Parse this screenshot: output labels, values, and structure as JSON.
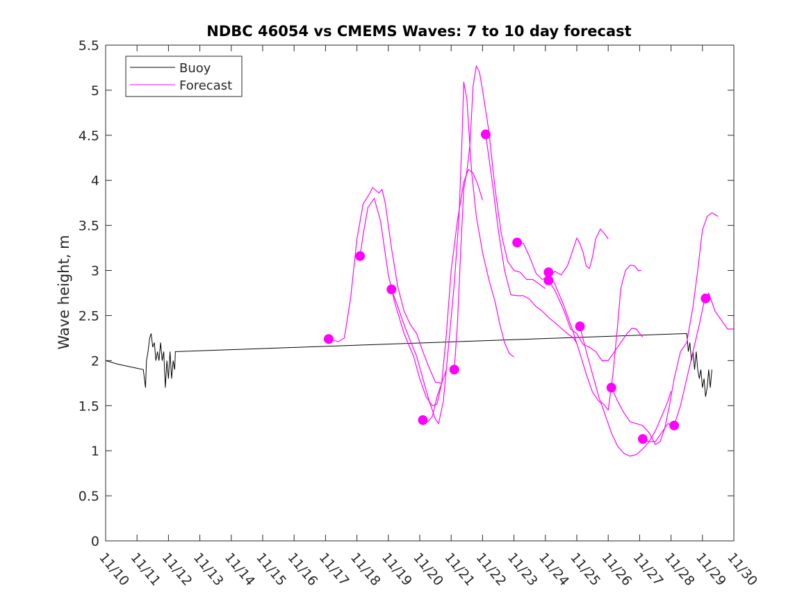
{
  "chart_data": {
    "type": "line",
    "title": "NDBC 46054 vs CMEMS Waves: 7 to 10 day forecast",
    "xlabel": "",
    "ylabel": "Wave height, m",
    "xlim": [
      0,
      20
    ],
    "ylim": [
      0,
      5.5
    ],
    "x_tick_values": [
      0,
      1,
      2,
      3,
      4,
      5,
      6,
      7,
      8,
      9,
      10,
      11,
      12,
      13,
      14,
      15,
      16,
      17,
      18,
      19,
      20
    ],
    "x_tick_labels": [
      "11/10",
      "11/11",
      "11/12",
      "11/13",
      "11/14",
      "11/15",
      "11/16",
      "11/17",
      "11/18",
      "11/19",
      "11/20",
      "11/21",
      "11/22",
      "11/23",
      "11/24",
      "11/25",
      "11/26",
      "11/27",
      "11/28",
      "11/29",
      "11/30"
    ],
    "y_tick_values": [
      0,
      0.5,
      1,
      1.5,
      2,
      2.5,
      3,
      3.5,
      4,
      4.5,
      5,
      5.5
    ],
    "y_tick_labels": [
      "0",
      "0.5",
      "1",
      "1.5",
      "2",
      "2.5",
      "3",
      "3.5",
      "4",
      "4.5",
      "5",
      "5.5"
    ],
    "grid": false,
    "legend": {
      "position": "top-left",
      "entries": [
        "Buoy",
        "Forecast"
      ]
    },
    "colors": {
      "buoy": "#000000",
      "forecast": "#ff00ff"
    },
    "series": [
      {
        "name": "Buoy",
        "color": "#000000",
        "points": [
          [
            0.0,
            2.0
          ],
          [
            0.4,
            1.96
          ],
          [
            0.8,
            1.93
          ],
          [
            1.2,
            1.9
          ],
          [
            1.27,
            1.7
          ],
          [
            1.3,
            2.0
          ],
          [
            1.35,
            2.1
          ],
          [
            1.4,
            2.25
          ],
          [
            1.45,
            2.3
          ],
          [
            1.5,
            2.15
          ],
          [
            1.55,
            2.2
          ],
          [
            1.6,
            2.0
          ],
          [
            1.65,
            2.1
          ],
          [
            1.7,
            2.0
          ],
          [
            1.75,
            2.2
          ],
          [
            1.8,
            2.0
          ],
          [
            1.85,
            2.1
          ],
          [
            1.9,
            1.7
          ],
          [
            1.95,
            2.0
          ],
          [
            2.0,
            1.8
          ],
          [
            2.05,
            2.1
          ],
          [
            2.1,
            1.8
          ],
          [
            2.15,
            2.0
          ],
          [
            2.2,
            1.9
          ],
          [
            2.22,
            2.1
          ],
          [
            18.5,
            2.3
          ],
          [
            18.55,
            2.1
          ],
          [
            18.6,
            2.2
          ],
          [
            18.65,
            2.0
          ],
          [
            18.7,
            2.1
          ],
          [
            18.75,
            1.9
          ],
          [
            18.8,
            2.1
          ],
          [
            18.85,
            1.9
          ],
          [
            18.9,
            1.8
          ],
          [
            18.95,
            1.9
          ],
          [
            19.0,
            1.7
          ],
          [
            19.05,
            1.8
          ],
          [
            19.1,
            1.6
          ],
          [
            19.15,
            1.7
          ],
          [
            19.2,
            1.9
          ],
          [
            19.25,
            1.7
          ],
          [
            19.3,
            1.9
          ]
        ]
      },
      {
        "name": "Forecast",
        "color": "#ff00ff",
        "forecast_runs": [
          [
            [
              7.1,
              2.24
            ],
            [
              7.4,
              2.21
            ],
            [
              7.6,
              2.25
            ],
            [
              7.8,
              2.7
            ],
            [
              8.0,
              3.35
            ],
            [
              8.2,
              3.74
            ],
            [
              8.4,
              3.85
            ],
            [
              8.5,
              3.92
            ],
            [
              8.7,
              3.86
            ],
            [
              8.8,
              3.9
            ],
            [
              8.9,
              3.75
            ],
            [
              9.1,
              3.25
            ],
            [
              9.3,
              2.82
            ],
            [
              9.5,
              2.55
            ],
            [
              9.7,
              2.4
            ],
            [
              9.9,
              2.3
            ],
            [
              10.1,
              2.1
            ],
            [
              10.3,
              1.92
            ],
            [
              10.5,
              1.76
            ],
            [
              10.7,
              1.75
            ]
          ],
          [
            [
              8.1,
              3.16
            ],
            [
              8.2,
              3.4
            ],
            [
              8.35,
              3.7
            ],
            [
              8.55,
              3.8
            ],
            [
              8.75,
              3.55
            ],
            [
              9.0,
              2.95
            ],
            [
              9.2,
              2.65
            ],
            [
              9.5,
              2.3
            ],
            [
              9.8,
              2.05
            ],
            [
              10.0,
              1.8
            ],
            [
              10.2,
              1.6
            ],
            [
              10.4,
              1.5
            ],
            [
              10.55,
              1.52
            ],
            [
              10.7,
              1.75
            ],
            [
              10.85,
              2.3
            ],
            [
              11.0,
              3.0
            ],
            [
              11.2,
              3.55
            ],
            [
              11.4,
              3.98
            ],
            [
              11.55,
              4.12
            ],
            [
              11.7,
              4.08
            ],
            [
              11.85,
              3.95
            ],
            [
              12.0,
              3.78
            ]
          ],
          [
            [
              9.1,
              2.79
            ],
            [
              9.3,
              2.6
            ],
            [
              9.5,
              2.4
            ],
            [
              9.7,
              2.22
            ],
            [
              9.9,
              2.05
            ],
            [
              10.1,
              1.8
            ],
            [
              10.3,
              1.55
            ],
            [
              10.5,
              1.35
            ],
            [
              10.6,
              1.3
            ],
            [
              10.75,
              1.55
            ],
            [
              10.9,
              2.1
            ],
            [
              11.1,
              2.85
            ],
            [
              11.25,
              3.6
            ],
            [
              11.35,
              4.5
            ],
            [
              11.4,
              5.09
            ],
            [
              11.5,
              4.9
            ],
            [
              11.65,
              4.1
            ],
            [
              11.8,
              3.6
            ],
            [
              12.0,
              3.2
            ],
            [
              12.2,
              2.9
            ],
            [
              12.4,
              2.65
            ],
            [
              12.55,
              2.4
            ],
            [
              12.7,
              2.2
            ],
            [
              12.85,
              2.08
            ],
            [
              13.0,
              2.04
            ]
          ],
          [
            [
              10.1,
              1.34
            ],
            [
              10.25,
              1.32
            ],
            [
              10.4,
              1.38
            ],
            [
              10.55,
              1.6
            ],
            [
              10.7,
              1.75
            ],
            [
              10.85,
              1.9
            ]
          ],
          [
            [
              11.1,
              1.9
            ],
            [
              11.2,
              2.4
            ],
            [
              11.3,
              3.2
            ],
            [
              11.4,
              3.9
            ],
            [
              11.5,
              4.1
            ],
            [
              11.6,
              4.4
            ],
            [
              11.7,
              5.05
            ],
            [
              11.8,
              5.27
            ],
            [
              11.9,
              5.2
            ],
            [
              12.0,
              5.0
            ],
            [
              12.2,
              4.55
            ],
            [
              12.4,
              3.9
            ],
            [
              12.6,
              3.4
            ],
            [
              12.8,
              3.1
            ],
            [
              13.0,
              3.0
            ],
            [
              13.2,
              2.98
            ],
            [
              13.4,
              2.9
            ],
            [
              13.6,
              2.9
            ],
            [
              13.8,
              2.85
            ],
            [
              14.0,
              2.8
            ]
          ],
          [
            [
              12.1,
              4.51
            ],
            [
              12.3,
              4.0
            ],
            [
              12.5,
              3.45
            ],
            [
              12.7,
              3.0
            ],
            [
              12.9,
              2.73
            ],
            [
              13.1,
              2.72
            ],
            [
              13.3,
              2.72
            ],
            [
              13.5,
              2.68
            ],
            [
              13.7,
              2.6
            ],
            [
              13.9,
              2.55
            ],
            [
              14.1,
              2.48
            ],
            [
              14.3,
              2.42
            ],
            [
              14.5,
              2.36
            ],
            [
              14.7,
              2.3
            ],
            [
              14.9,
              2.25
            ],
            [
              15.0,
              2.19
            ]
          ],
          [
            [
              13.1,
              3.31
            ],
            [
              13.3,
              3.3
            ],
            [
              13.5,
              3.15
            ],
            [
              13.7,
              2.97
            ],
            [
              13.9,
              2.9
            ],
            [
              14.1,
              2.93
            ],
            [
              14.3,
              2.99
            ],
            [
              14.5,
              2.95
            ],
            [
              14.7,
              3.05
            ],
            [
              14.85,
              3.2
            ],
            [
              15.0,
              3.36
            ],
            [
              15.1,
              3.3
            ],
            [
              15.2,
              3.2
            ],
            [
              15.3,
              3.05
            ],
            [
              15.4,
              3.02
            ],
            [
              15.5,
              3.15
            ],
            [
              15.6,
              3.35
            ],
            [
              15.75,
              3.46
            ],
            [
              15.9,
              3.4
            ],
            [
              16.0,
              3.35
            ]
          ],
          [
            [
              14.1,
              2.98
            ],
            [
              14.3,
              2.85
            ],
            [
              14.6,
              2.6
            ],
            [
              14.9,
              2.3
            ],
            [
              15.1,
              2.08
            ],
            [
              15.3,
              1.85
            ],
            [
              15.5,
              1.65
            ],
            [
              15.7,
              1.55
            ],
            [
              15.85,
              1.52
            ],
            [
              16.0,
              1.45
            ],
            [
              16.15,
              1.85
            ],
            [
              16.3,
              2.4
            ],
            [
              16.4,
              2.8
            ],
            [
              16.55,
              3.0
            ],
            [
              16.7,
              3.06
            ],
            [
              16.85,
              3.05
            ],
            [
              16.95,
              3.0
            ],
            [
              17.05,
              3.0
            ]
          ],
          [
            [
              14.1,
              2.89
            ],
            [
              14.3,
              2.78
            ],
            [
              14.6,
              2.55
            ],
            [
              14.8,
              2.35
            ],
            [
              15.0,
              2.3
            ],
            [
              15.2,
              2.18
            ],
            [
              15.4,
              2.15
            ],
            [
              15.6,
              2.1
            ],
            [
              15.8,
              2.0
            ],
            [
              16.0,
              2.0
            ],
            [
              16.2,
              2.1
            ],
            [
              16.4,
              2.2
            ],
            [
              16.6,
              2.3
            ],
            [
              16.75,
              2.36
            ],
            [
              16.9,
              2.35
            ],
            [
              17.0,
              2.3
            ],
            [
              17.1,
              2.26
            ]
          ],
          [
            [
              15.1,
              2.38
            ],
            [
              15.3,
              2.1
            ],
            [
              15.5,
              1.85
            ],
            [
              15.7,
              1.6
            ],
            [
              15.9,
              1.4
            ],
            [
              16.1,
              1.2
            ],
            [
              16.3,
              1.05
            ],
            [
              16.5,
              0.97
            ],
            [
              16.7,
              0.94
            ],
            [
              16.9,
              0.96
            ],
            [
              17.1,
              1.02
            ],
            [
              17.3,
              1.1
            ],
            [
              17.5,
              1.22
            ],
            [
              17.7,
              1.38
            ],
            [
              17.9,
              1.55
            ],
            [
              18.0,
              1.66
            ]
          ],
          [
            [
              16.1,
              1.7
            ],
            [
              16.3,
              1.55
            ],
            [
              16.5,
              1.42
            ],
            [
              16.7,
              1.32
            ],
            [
              16.9,
              1.3
            ],
            [
              17.1,
              1.28
            ],
            [
              17.3,
              1.2
            ],
            [
              17.5,
              1.07
            ],
            [
              17.65,
              1.1
            ],
            [
              17.8,
              1.25
            ],
            [
              17.95,
              1.5
            ],
            [
              18.1,
              1.8
            ],
            [
              18.3,
              2.1
            ],
            [
              18.5,
              2.2
            ],
            [
              18.6,
              2.4
            ],
            [
              18.7,
              2.6
            ],
            [
              18.85,
              3.0
            ],
            [
              19.0,
              3.45
            ],
            [
              19.15,
              3.6
            ],
            [
              19.3,
              3.64
            ],
            [
              19.5,
              3.6
            ]
          ],
          [
            [
              17.1,
              1.13
            ],
            [
              17.3,
              1.1
            ],
            [
              17.5,
              1.1
            ],
            [
              17.7,
              1.2
            ],
            [
              17.9,
              1.3
            ],
            [
              18.1,
              1.28
            ]
          ],
          [
            [
              18.1,
              1.28
            ],
            [
              18.3,
              1.5
            ],
            [
              18.5,
              1.8
            ],
            [
              18.7,
              2.1
            ],
            [
              18.9,
              2.4
            ],
            [
              19.05,
              2.65
            ],
            [
              19.2,
              2.75
            ],
            [
              19.4,
              2.55
            ],
            [
              19.6,
              2.45
            ],
            [
              19.8,
              2.35
            ],
            [
              20.0,
              2.35
            ]
          ]
        ],
        "markers": [
          [
            7.1,
            2.24
          ],
          [
            8.1,
            3.16
          ],
          [
            9.1,
            2.79
          ],
          [
            10.1,
            1.34
          ],
          [
            11.1,
            1.9
          ],
          [
            12.1,
            4.51
          ],
          [
            13.1,
            3.31
          ],
          [
            14.1,
            2.98
          ],
          [
            14.1,
            2.89
          ],
          [
            15.1,
            2.38
          ],
          [
            16.1,
            1.7
          ],
          [
            17.1,
            1.13
          ],
          [
            18.1,
            1.28
          ],
          [
            19.1,
            2.69
          ]
        ]
      }
    ]
  }
}
